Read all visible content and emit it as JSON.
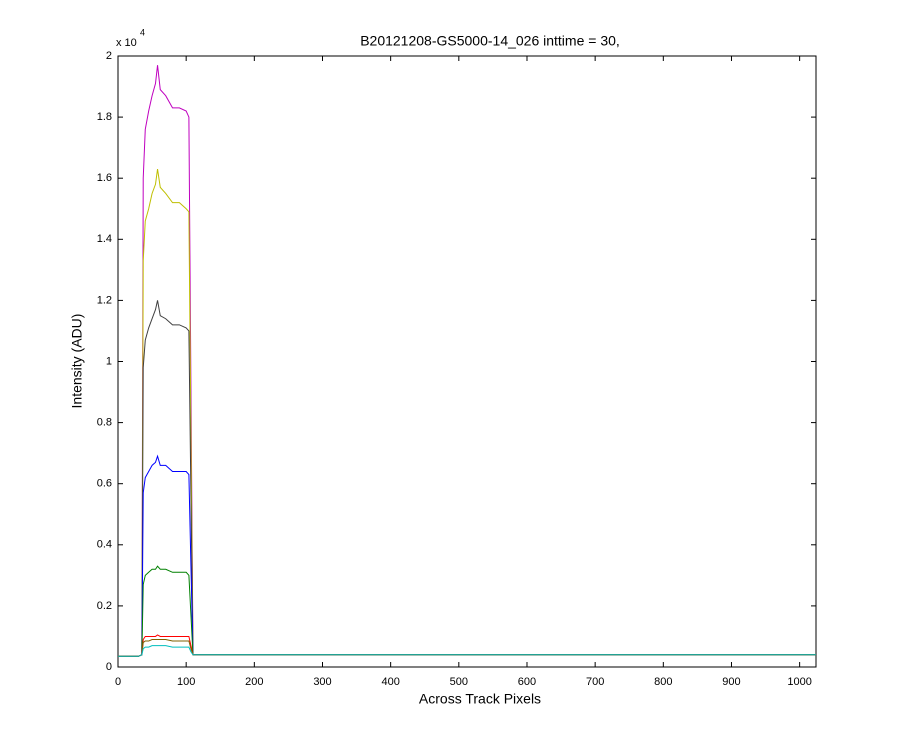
{
  "chart_data": {
    "type": "line",
    "title": "B20121208-GS5000-14_026 inttime = 30,",
    "x_label": "Across Track Pixels",
    "y_label": "Intensity (ADU)",
    "y_multiplier": {
      "base": "x 10",
      "exponent": "4"
    },
    "x": [
      0,
      10,
      20,
      30,
      35,
      37,
      40,
      45,
      50,
      55,
      58,
      62,
      70,
      80,
      90,
      100,
      104,
      107,
      110,
      120,
      150,
      200,
      300,
      400,
      500,
      600,
      700,
      800,
      900,
      1000,
      1024
    ],
    "series": [
      {
        "color": "#bf00bf",
        "values": [
          0.035,
          0.035,
          0.035,
          0.035,
          0.04,
          1.6,
          1.76,
          1.82,
          1.87,
          1.91,
          1.97,
          1.89,
          1.87,
          1.83,
          1.83,
          1.82,
          1.8,
          0.91,
          0.04,
          0.04,
          0.04,
          0.04,
          0.04,
          0.04,
          0.04,
          0.04,
          0.04,
          0.04,
          0.04,
          0.04,
          0.04
        ]
      },
      {
        "color": "#bfbf00",
        "values": [
          0.035,
          0.035,
          0.035,
          0.035,
          0.04,
          1.33,
          1.46,
          1.5,
          1.55,
          1.58,
          1.63,
          1.57,
          1.55,
          1.52,
          1.52,
          1.5,
          1.49,
          0.76,
          0.04,
          0.04,
          0.04,
          0.04,
          0.04,
          0.04,
          0.04,
          0.04,
          0.04,
          0.04,
          0.04,
          0.04,
          0.04
        ]
      },
      {
        "color": "#404040",
        "values": [
          0.035,
          0.035,
          0.035,
          0.035,
          0.04,
          0.98,
          1.07,
          1.11,
          1.14,
          1.17,
          1.2,
          1.15,
          1.14,
          1.12,
          1.12,
          1.11,
          1.1,
          0.56,
          0.04,
          0.04,
          0.04,
          0.04,
          0.04,
          0.04,
          0.04,
          0.04,
          0.04,
          0.04,
          0.04,
          0.04,
          0.04
        ]
      },
      {
        "color": "#0000ff",
        "values": [
          0.035,
          0.035,
          0.035,
          0.035,
          0.04,
          0.57,
          0.62,
          0.64,
          0.66,
          0.67,
          0.69,
          0.66,
          0.66,
          0.64,
          0.64,
          0.64,
          0.63,
          0.33,
          0.04,
          0.04,
          0.04,
          0.04,
          0.04,
          0.04,
          0.04,
          0.04,
          0.04,
          0.04,
          0.04,
          0.04,
          0.04
        ]
      },
      {
        "color": "#008000",
        "values": [
          0.035,
          0.035,
          0.035,
          0.035,
          0.04,
          0.27,
          0.3,
          0.31,
          0.32,
          0.32,
          0.33,
          0.32,
          0.32,
          0.31,
          0.31,
          0.31,
          0.3,
          0.17,
          0.04,
          0.04,
          0.04,
          0.04,
          0.04,
          0.04,
          0.04,
          0.04,
          0.04,
          0.04,
          0.04,
          0.04,
          0.04
        ]
      },
      {
        "color": "#ff0000",
        "values": [
          0.035,
          0.035,
          0.035,
          0.035,
          0.04,
          0.09,
          0.1,
          0.1,
          0.1,
          0.1,
          0.105,
          0.1,
          0.1,
          0.1,
          0.1,
          0.1,
          0.1,
          0.07,
          0.04,
          0.04,
          0.04,
          0.04,
          0.04,
          0.04,
          0.04,
          0.04,
          0.04,
          0.04,
          0.04,
          0.04,
          0.04
        ]
      },
      {
        "color": "#806000",
        "values": [
          0.035,
          0.035,
          0.035,
          0.035,
          0.04,
          0.08,
          0.085,
          0.085,
          0.09,
          0.09,
          0.09,
          0.09,
          0.09,
          0.085,
          0.085,
          0.085,
          0.085,
          0.06,
          0.04,
          0.04,
          0.04,
          0.04,
          0.04,
          0.04,
          0.04,
          0.04,
          0.04,
          0.04,
          0.04,
          0.04,
          0.04
        ]
      },
      {
        "color": "#00bfbf",
        "values": [
          0.035,
          0.035,
          0.035,
          0.035,
          0.04,
          0.06,
          0.065,
          0.065,
          0.07,
          0.07,
          0.07,
          0.07,
          0.07,
          0.065,
          0.065,
          0.065,
          0.065,
          0.05,
          0.04,
          0.04,
          0.04,
          0.04,
          0.04,
          0.04,
          0.04,
          0.04,
          0.04,
          0.04,
          0.04,
          0.04,
          0.04
        ]
      }
    ],
    "xlim": [
      0,
      1024
    ],
    "xticks": [
      0,
      100,
      200,
      300,
      400,
      500,
      600,
      700,
      800,
      900,
      1000
    ],
    "ylim": [
      0,
      2
    ],
    "yticks": [
      0,
      0.2,
      0.4,
      0.6,
      0.8,
      1,
      1.2,
      1.4,
      1.6,
      1.8,
      2
    ],
    "grid": false
  }
}
